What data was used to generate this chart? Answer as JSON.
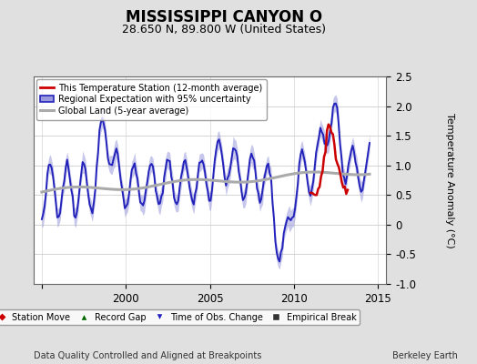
{
  "title": "MISSISSIPPI CANYON O",
  "subtitle": "28.650 N, 89.800 W (United States)",
  "ylabel": "Temperature Anomaly (°C)",
  "xlabel_left": "Data Quality Controlled and Aligned at Breakpoints",
  "xlabel_right": "Berkeley Earth",
  "ylim": [
    -1.0,
    2.5
  ],
  "xlim": [
    1994.5,
    2015.5
  ],
  "yticks": [
    -1.0,
    -0.5,
    0.0,
    0.5,
    1.0,
    1.5,
    2.0,
    2.5
  ],
  "xticks": [
    1995,
    2000,
    2005,
    2010,
    2015
  ],
  "xtick_labels": [
    "",
    "2000",
    "2005",
    "2010",
    "2015"
  ],
  "background_color": "#e0e0e0",
  "plot_bg_color": "#ffffff",
  "red_color": "#cc0000",
  "blue_color": "#2222bb",
  "blue_fill": "#9999dd",
  "gray_color": "#aaaaaa",
  "title_fontsize": 12,
  "subtitle_fontsize": 9,
  "axis_fontsize": 8,
  "tick_fontsize": 8.5,
  "legend1_labels": [
    "This Temperature Station (12-month average)",
    "Regional Expectation with 95% uncertainty",
    "Global Land (5-year average)"
  ],
  "legend2_labels": [
    "Station Move",
    "Record Gap",
    "Time of Obs. Change",
    "Empirical Break"
  ],
  "legend2_marker_colors": [
    "#cc0000",
    "#006600",
    "#2222bb",
    "#333333"
  ],
  "legend2_markers": [
    "D",
    "^",
    "v",
    "s"
  ]
}
